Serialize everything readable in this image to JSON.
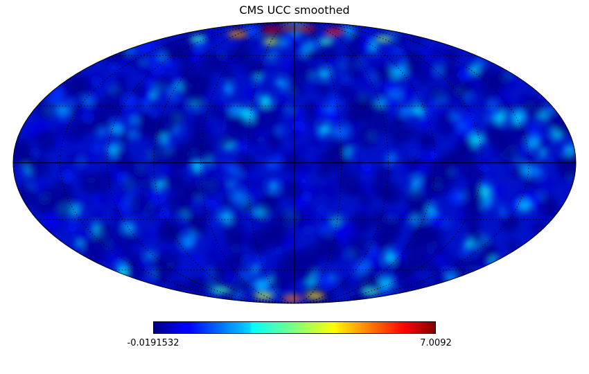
{
  "chart_data": {
    "type": "heatmap",
    "projection": "mollweide",
    "title": "CMS UCC smoothed",
    "colormap": "jet",
    "colorbar": {
      "min": -0.0191532,
      "max": 7.0092,
      "min_label": "-0.0191532",
      "max_label": "7.0092"
    },
    "graticule": {
      "longitude_step_deg": 30,
      "latitude_step_deg": 30
    },
    "hotspots": [
      {
        "lon": 10,
        "lat": 82,
        "value": 6.8
      },
      {
        "lon": 45,
        "lat": 80,
        "value": 6.5
      },
      {
        "lon": -25,
        "lat": 81,
        "value": 6.6
      },
      {
        "lon": -70,
        "lat": 78,
        "value": 6.0
      },
      {
        "lon": 90,
        "lat": 76,
        "value": 5.0
      },
      {
        "lon": 130,
        "lat": 72,
        "value": 3.0
      },
      {
        "lon": -120,
        "lat": 72,
        "value": 3.5
      },
      {
        "lon": 30,
        "lat": 70,
        "value": 4.0
      },
      {
        "lon": -40,
        "lat": 70,
        "value": 3.0
      },
      {
        "lon": 5,
        "lat": -83,
        "value": 5.5
      },
      {
        "lon": -40,
        "lat": -80,
        "value": 4.5
      },
      {
        "lon": 60,
        "lat": -80,
        "value": 4.0
      },
      {
        "lon": 110,
        "lat": -75,
        "value": 3.0
      },
      {
        "lon": -120,
        "lat": -76,
        "value": 3.0
      }
    ]
  }
}
